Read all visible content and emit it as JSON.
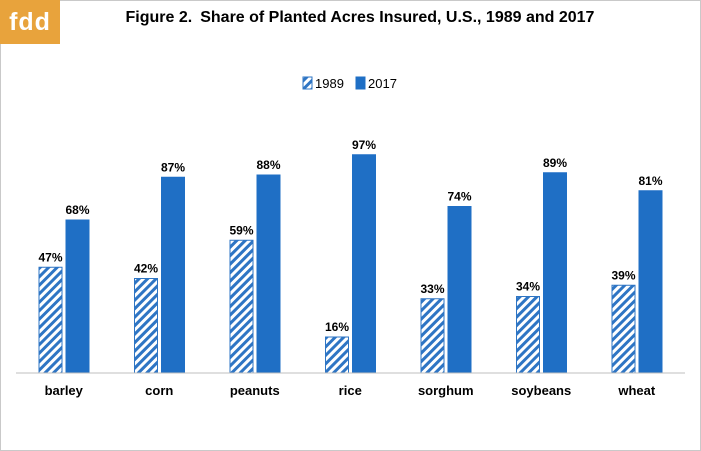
{
  "logo": {
    "text": "fdd"
  },
  "title": {
    "figure": "Figure 2.",
    "text": "Share of Planted Acres Insured, U.S., 1989 and 2017"
  },
  "colors": {
    "blue": "#1f6fc5",
    "hatch": "#2e75c4",
    "logo_bg": "#e8a33c"
  },
  "chart_data": {
    "type": "bar",
    "title": "Figure 2. Share of Planted Acres Insured, U.S., 1989 and 2017",
    "categories": [
      "barley",
      "corn",
      "peanuts",
      "rice",
      "sorghum",
      "soybeans",
      "wheat"
    ],
    "series": [
      {
        "name": "1989",
        "values": [
          47,
          42,
          59,
          16,
          33,
          34,
          39
        ],
        "labels": [
          "47%",
          "42%",
          "59%",
          "16%",
          "33%",
          "34%",
          "39%"
        ],
        "style": "hatched"
      },
      {
        "name": "2017",
        "values": [
          68,
          87,
          88,
          97,
          74,
          89,
          81
        ],
        "labels": [
          "68%",
          "87%",
          "88%",
          "97%",
          "74%",
          "89%",
          "81%"
        ],
        "style": "solid"
      }
    ],
    "ylim": [
      0,
      100
    ],
    "grid": false,
    "legend": "top-center",
    "xlabel": "",
    "ylabel": ""
  }
}
